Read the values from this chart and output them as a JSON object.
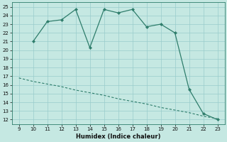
{
  "xlabel": "Humidex (Indice chaleur)",
  "x_line1": [
    10,
    11,
    12,
    13,
    14,
    15,
    16,
    17,
    18,
    19,
    20,
    21,
    22,
    23
  ],
  "y_line1": [
    21,
    23.3,
    23.5,
    24.7,
    20.3,
    24.7,
    24.3,
    24.7,
    22.7,
    23,
    22,
    15.5,
    12.7,
    12
  ],
  "x_line2": [
    9,
    10,
    11,
    12,
    13,
    14,
    15,
    16,
    17,
    18,
    19,
    20,
    21,
    22,
    23
  ],
  "y_line2": [
    16.8,
    16.4,
    16.1,
    15.8,
    15.4,
    15.1,
    14.8,
    14.4,
    14.1,
    13.8,
    13.4,
    13.1,
    12.8,
    12.4,
    12.1
  ],
  "line_color": "#2E7D6B",
  "bg_color": "#C5E8E2",
  "grid_color": "#99CCCC",
  "xlim": [
    8.5,
    23.5
  ],
  "ylim": [
    11.5,
    25.5
  ],
  "xticks": [
    9,
    10,
    11,
    12,
    13,
    14,
    15,
    16,
    17,
    18,
    19,
    20,
    21,
    22,
    23
  ],
  "yticks": [
    12,
    13,
    14,
    15,
    16,
    17,
    18,
    19,
    20,
    21,
    22,
    23,
    24,
    25
  ],
  "tick_fontsize": 5.0,
  "xlabel_fontsize": 6.0
}
